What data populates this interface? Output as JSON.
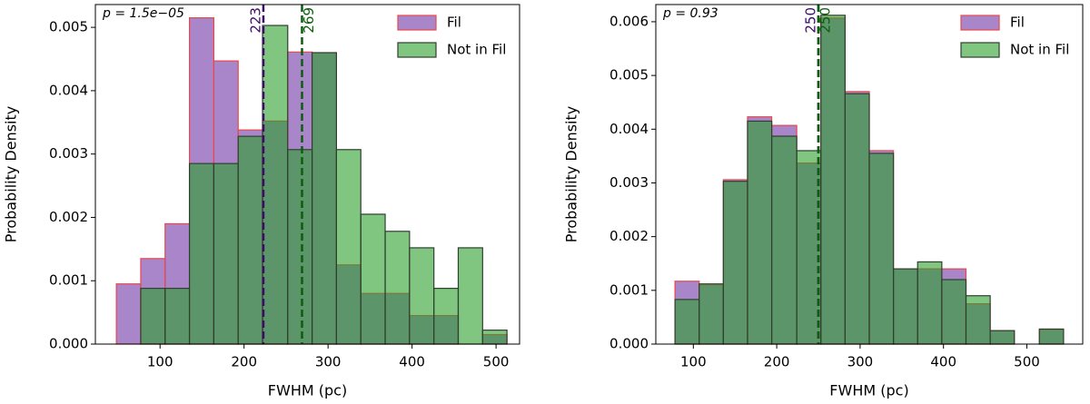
{
  "chart_data": [
    {
      "type": "histogram",
      "xlabel": "FWHM (pc)",
      "ylabel": "Probability Density",
      "annotation": "p = 1.5e−05",
      "bins": [
        48,
        77,
        106,
        135,
        164,
        193,
        222,
        252,
        281,
        310,
        339,
        368,
        397,
        426,
        455,
        484,
        513
      ],
      "series": [
        {
          "name": "Fil",
          "color": "#9467bd",
          "edgecolor": "#e8474b",
          "values": [
            0.00095,
            0.00135,
            0.0019,
            0.00515,
            0.00447,
            0.00338,
            0.00352,
            0.00461,
            0.0046,
            0.00125,
            0.0008,
            0.0008,
            0.00045,
            0.00045,
            0,
            0.00015
          ]
        },
        {
          "name": "Not in Fil",
          "color": "#2ca02c",
          "edgecolor": "#2f3f2f",
          "values": [
            0,
            0.00088,
            0.00088,
            0.00285,
            0.00285,
            0.00328,
            0.00503,
            0.00307,
            0.0046,
            0.00307,
            0.00205,
            0.00178,
            0.00152,
            0.00088,
            0.00152,
            0.00022
          ]
        }
      ],
      "medians": [
        {
          "value": 223,
          "color": "#3d0a6b"
        },
        {
          "value": 269,
          "color": "#0b5e0b"
        }
      ],
      "xlim": [
        23,
        528
      ],
      "ylim": [
        0,
        0.00536
      ],
      "xticks": [
        100,
        200,
        300,
        400,
        500
      ],
      "yticks": [
        {
          "value": 0,
          "label": "0.000"
        },
        {
          "value": 0.001,
          "label": "0.001"
        },
        {
          "value": 0.002,
          "label": "0.002"
        },
        {
          "value": 0.003,
          "label": "0.003"
        },
        {
          "value": 0.004,
          "label": "0.004"
        },
        {
          "value": 0.005,
          "label": "0.005"
        }
      ],
      "legend": "upper right"
    },
    {
      "type": "histogram",
      "xlabel": "FWHM (pc)",
      "ylabel": "Probability Density",
      "annotation": "p = 0.93",
      "bins": [
        78,
        107,
        136,
        165,
        194,
        224,
        253,
        282,
        311,
        340,
        369,
        398,
        427,
        456,
        485,
        515,
        544
      ],
      "series": [
        {
          "name": "Fil",
          "color": "#9467bd",
          "edgecolor": "#e8474b",
          "values": [
            0.00117,
            0.0011,
            0.00306,
            0.00423,
            0.00407,
            0.00337,
            0.00607,
            0.0047,
            0.0036,
            0.0014,
            0.0014,
            0.0014,
            0.00075,
            0.00025,
            0,
            0.00027
          ]
        },
        {
          "name": "Not in Fil",
          "color": "#2ca02c",
          "edgecolor": "#2f3f2f",
          "values": [
            0.00083,
            0.00112,
            0.00303,
            0.00415,
            0.00387,
            0.0036,
            0.00612,
            0.00466,
            0.00355,
            0.0014,
            0.00153,
            0.0012,
            0.0009,
            0.00025,
            0,
            0.00028
          ]
        }
      ],
      "medians": [
        {
          "value": 250,
          "color": "#3d0a6b"
        },
        {
          "value": 250,
          "color": "#0b5e0b"
        }
      ],
      "xlim": [
        55,
        567
      ],
      "ylim": [
        0,
        0.00632
      ],
      "xticks": [
        100,
        200,
        300,
        400,
        500
      ],
      "yticks": [
        {
          "value": 0,
          "label": "0.000"
        },
        {
          "value": 0.001,
          "label": "0.001"
        },
        {
          "value": 0.002,
          "label": "0.002"
        },
        {
          "value": 0.003,
          "label": "0.003"
        },
        {
          "value": 0.004,
          "label": "0.004"
        },
        {
          "value": 0.005,
          "label": "0.005"
        },
        {
          "value": 0.006,
          "label": "0.006"
        }
      ],
      "legend": "upper right"
    }
  ]
}
